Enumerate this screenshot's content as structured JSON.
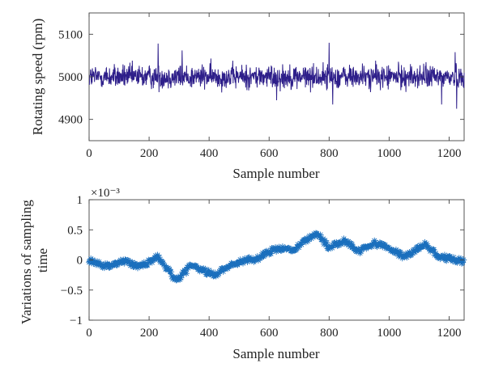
{
  "chart_data": [
    {
      "type": "line",
      "xlabel": "Sample number",
      "ylabel": "Rotating speed (rpm)",
      "xlim": [
        0,
        1250
      ],
      "ylim": [
        4850,
        5150
      ],
      "xticks": [
        "0",
        "200",
        "400",
        "600",
        "800",
        "1000",
        "1200"
      ],
      "yticks": [
        "4900",
        "5000",
        "5100"
      ],
      "series_color": "#2e1f8a",
      "grid": false,
      "x_samples": [
        1,
        1250
      ],
      "noise_description_mean": 5000,
      "peaks": [
        {
          "x": 230,
          "y": 5078
        },
        {
          "x": 800,
          "y": 5080
        },
        {
          "x": 310,
          "y": 5062
        },
        {
          "x": 1220,
          "y": 5058
        }
      ],
      "troughs": [
        {
          "x": 1225,
          "y": 4925
        },
        {
          "x": 812,
          "y": 4935
        },
        {
          "x": 1175,
          "y": 4935
        },
        {
          "x": 625,
          "y": 4945
        }
      ]
    },
    {
      "type": "line",
      "xlabel": "Sample number",
      "ylabel": "Variations of sampling time",
      "exponent_label": "×10⁻³",
      "xlim": [
        0,
        1250
      ],
      "ylim": [
        -1,
        1
      ],
      "xticks": [
        "0",
        "200",
        "400",
        "600",
        "800",
        "1000",
        "1200"
      ],
      "yticks": [
        "−1",
        "−0.5",
        "0",
        "0.5",
        "1"
      ],
      "series_color": "#1a6fbd",
      "marker": "asterisk",
      "grid": false,
      "trend": {
        "x": [
          0,
          50,
          120,
          170,
          230,
          290,
          340,
          420,
          480,
          560,
          620,
          680,
          760,
          800,
          850,
          900,
          950,
          1000,
          1050,
          1120,
          1170,
          1250
        ],
        "y": [
          0.0,
          -0.1,
          -0.02,
          -0.12,
          0.05,
          -0.35,
          -0.1,
          -0.25,
          -0.05,
          0.02,
          0.18,
          0.18,
          0.45,
          0.2,
          0.33,
          0.15,
          0.28,
          0.2,
          0.05,
          0.25,
          0.05,
          -0.02
        ]
      }
    }
  ]
}
